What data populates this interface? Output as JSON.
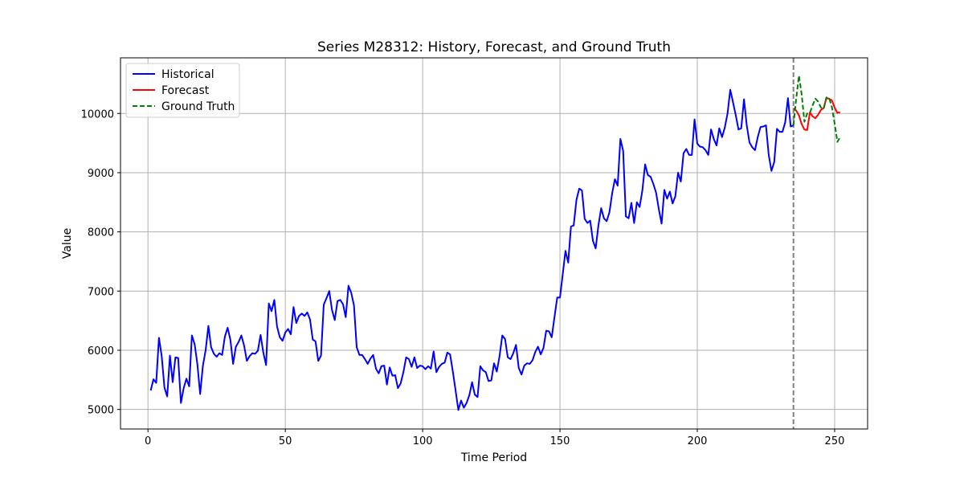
{
  "chart_data": {
    "type": "line",
    "title": "Series M28312: History, Forecast, and Ground Truth",
    "xlabel": "Time Period",
    "ylabel": "Value",
    "xlim": [
      -10,
      262
    ],
    "ylim": [
      4670,
      10940
    ],
    "xticks": [
      0,
      50,
      100,
      150,
      200,
      250
    ],
    "yticks": [
      5000,
      6000,
      7000,
      8000,
      9000,
      10000
    ],
    "grid": true,
    "legend_position": "upper-left",
    "forecast_start_marker": 235,
    "colors": {
      "historical": "#0000ff",
      "forecast": "#ff0000",
      "ground_truth": "#008000",
      "vline": "#808080",
      "grid": "#b0b0b0"
    },
    "series": [
      {
        "name": "Historical",
        "style": "solid",
        "x": [
          1,
          2,
          3,
          4,
          5,
          6,
          7,
          8,
          9,
          10,
          11,
          12,
          13,
          14,
          15,
          16,
          17,
          18,
          19,
          20,
          21,
          22,
          23,
          24,
          25,
          26,
          27,
          28,
          29,
          30,
          31,
          32,
          33,
          34,
          35,
          36,
          37,
          38,
          39,
          40,
          41,
          42,
          43,
          44,
          45,
          46,
          47,
          48,
          49,
          50,
          51,
          52,
          53,
          54,
          55,
          56,
          57,
          58,
          59,
          60,
          61,
          62,
          63,
          64,
          65,
          66,
          67,
          68,
          69,
          70,
          71,
          72,
          73,
          74,
          75,
          76,
          77,
          78,
          79,
          80,
          81,
          82,
          83,
          84,
          85,
          86,
          87,
          88,
          89,
          90,
          91,
          92,
          93,
          94,
          95,
          96,
          97,
          98,
          99,
          100,
          101,
          102,
          103,
          104,
          105,
          106,
          107,
          108,
          109,
          110,
          111,
          112,
          113,
          114,
          115,
          116,
          117,
          118,
          119,
          120,
          121,
          122,
          123,
          124,
          125,
          126,
          127,
          128,
          129,
          130,
          131,
          132,
          133,
          134,
          135,
          136,
          137,
          138,
          139,
          140,
          141,
          142,
          143,
          144,
          145,
          146,
          147,
          148,
          149,
          150,
          151,
          152,
          153,
          154,
          155,
          156,
          157,
          158,
          159,
          160,
          161,
          162,
          163,
          164,
          165,
          166,
          167,
          168,
          169,
          170,
          171,
          172,
          173,
          174,
          175,
          176,
          177,
          178,
          179,
          180,
          181,
          182,
          183,
          184,
          185,
          186,
          187,
          188,
          189,
          190,
          191,
          192,
          193,
          194,
          195,
          196,
          197,
          198,
          199,
          200,
          201,
          202,
          203,
          204,
          205,
          206,
          207,
          208,
          209,
          210,
          211,
          212,
          213,
          214,
          215,
          216,
          217,
          218,
          219,
          220,
          221,
          222,
          223,
          224,
          225,
          226,
          227,
          228,
          229,
          230,
          231,
          232,
          233,
          234,
          235
        ],
        "values": [
          5320,
          5510,
          5450,
          6210,
          5900,
          5370,
          5220,
          5910,
          5460,
          5880,
          5870,
          5110,
          5360,
          5520,
          5390,
          6250,
          6100,
          5760,
          5260,
          5740,
          6000,
          6410,
          6050,
          5940,
          5890,
          5950,
          5920,
          6230,
          6380,
          6180,
          5770,
          6060,
          6140,
          6250,
          6080,
          5820,
          5900,
          5950,
          5940,
          5990,
          6260,
          5960,
          5750,
          6790,
          6660,
          6850,
          6400,
          6220,
          6160,
          6300,
          6360,
          6270,
          6730,
          6460,
          6580,
          6620,
          6580,
          6640,
          6520,
          6180,
          6150,
          5820,
          5910,
          6770,
          6880,
          7000,
          6680,
          6510,
          6830,
          6850,
          6780,
          6560,
          7090,
          6970,
          6760,
          6050,
          5920,
          5920,
          5850,
          5770,
          5860,
          5920,
          5690,
          5610,
          5730,
          5740,
          5420,
          5710,
          5570,
          5580,
          5360,
          5440,
          5630,
          5880,
          5850,
          5720,
          5880,
          5700,
          5740,
          5730,
          5680,
          5730,
          5690,
          5980,
          5630,
          5720,
          5770,
          5790,
          5960,
          5930,
          5640,
          5320,
          4990,
          5150,
          5030,
          5110,
          5240,
          5460,
          5250,
          5210,
          5730,
          5660,
          5630,
          5480,
          5490,
          5780,
          5640,
          5900,
          6250,
          6190,
          5880,
          5850,
          5950,
          6090,
          5700,
          5590,
          5740,
          5780,
          5770,
          5830,
          5970,
          6060,
          5930,
          6040,
          6330,
          6320,
          6220,
          6560,
          6890,
          6890,
          7280,
          7680,
          7480,
          8090,
          8110,
          8540,
          8730,
          8700,
          8220,
          8150,
          8190,
          7850,
          7720,
          8110,
          8400,
          8230,
          8180,
          8330,
          8650,
          8890,
          8780,
          9570,
          9370,
          8260,
          8230,
          8490,
          8150,
          8500,
          8420,
          8700,
          9140,
          8960,
          8930,
          8810,
          8660,
          8380,
          8140,
          8710,
          8560,
          8680,
          8480,
          8600,
          9000,
          8850,
          9330,
          9400,
          9300,
          9300,
          9900,
          9490,
          9440,
          9430,
          9380,
          9300,
          9730,
          9570,
          9460,
          9750,
          9600,
          9760,
          10000,
          10400,
          10190,
          9970,
          9730,
          9750,
          10240,
          9800,
          9510,
          9430,
          9380,
          9600,
          9770,
          9780,
          9800,
          9300,
          9030,
          9180,
          9740,
          9690,
          9690,
          9850,
          10260,
          9780,
          9800
        ]
      },
      {
        "name": "Forecast",
        "style": "solid",
        "x": [
          235,
          236,
          237,
          238,
          239,
          240,
          241,
          242,
          243,
          244,
          245,
          246,
          247,
          248,
          249,
          250,
          251,
          252
        ],
        "values": [
          10090,
          10050,
          9970,
          9820,
          9730,
          9720,
          10020,
          9950,
          9920,
          9980,
          10060,
          10090,
          10260,
          10250,
          10220,
          10100,
          10010,
          10020
        ]
      },
      {
        "name": "Ground Truth",
        "style": "dashed",
        "x": [
          235,
          236,
          237,
          238,
          239,
          240,
          241,
          242,
          243,
          244,
          245,
          246,
          247,
          248,
          249,
          250,
          251,
          252
        ],
        "values": [
          9800,
          10250,
          10640,
          10320,
          9860,
          10000,
          10010,
          10140,
          10250,
          10200,
          10100,
          10080,
          10270,
          10260,
          10110,
          9830,
          9520,
          9600
        ]
      }
    ]
  }
}
